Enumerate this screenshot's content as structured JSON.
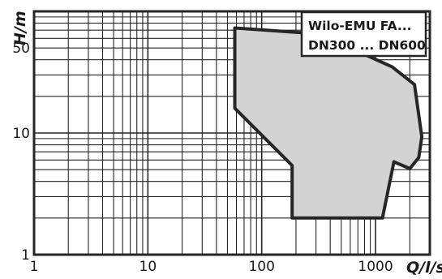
{
  "chart_data": {
    "type": "area",
    "title": "",
    "legend_lines": [
      "Wilo-EMU FA...",
      "DN300 ... DN600"
    ],
    "xlabel": "Q/l/s",
    "ylabel": "H/m",
    "x_scale": "log",
    "y_scale": "log",
    "xlim": [
      1,
      3000
    ],
    "ylim": [
      1,
      100
    ],
    "x_ticks": [
      1,
      10,
      100,
      1000
    ],
    "x_tick_labels": [
      "1",
      "10",
      "100",
      "1000"
    ],
    "y_ticks": [
      1,
      10,
      50
    ],
    "y_tick_labels": [
      "1",
      "10",
      "50"
    ],
    "grid": true,
    "legend_position": "top-right",
    "fill_color": "#d3d3d3",
    "outline_color": "#262626",
    "region": {
      "x": [
        58,
        345,
        580,
        650,
        690,
        860,
        1400,
        2200,
        2550,
        2400,
        2000,
        1450,
        1150,
        185,
        185,
        58
      ],
      "y": [
        73,
        65,
        56,
        53,
        47,
        43,
        35,
        25,
        9.3,
        6.3,
        5.1,
        5.8,
        2.0,
        2.0,
        5.4,
        16
      ]
    }
  }
}
